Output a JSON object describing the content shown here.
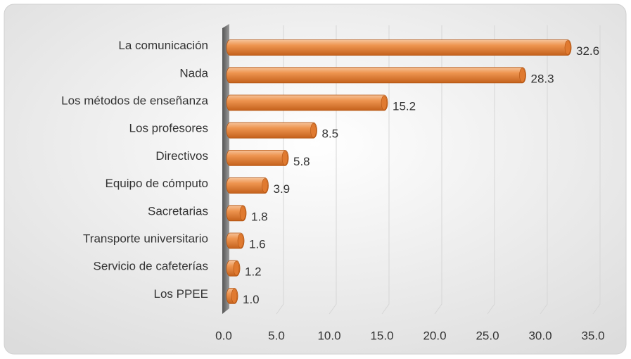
{
  "chart_data": {
    "type": "bar",
    "orientation": "horizontal",
    "categories": [
      "La comunicación",
      "Nada",
      "Los métodos de enseñanza",
      "Los profesores",
      "Directivos",
      "Equipo de cómputo",
      "Sacretarias",
      "Transporte universitario",
      "Servicio de cafeterías",
      "Los PPEE"
    ],
    "values": [
      32.6,
      28.3,
      15.2,
      8.5,
      5.8,
      3.9,
      1.8,
      1.6,
      1.2,
      1.0
    ],
    "value_labels": [
      "32.6",
      "28.3",
      "15.2",
      "8.5",
      "5.8",
      "3.9",
      "1.8",
      "1.6",
      "1.2",
      "1.0"
    ],
    "color": "#e8843c",
    "xlim": [
      0,
      35
    ],
    "xticks": [
      {
        "value": 0,
        "label": "0.0"
      },
      {
        "value": 5,
        "label": "5.0"
      },
      {
        "value": 10,
        "label": "10.0"
      },
      {
        "value": 15,
        "label": "15.0"
      },
      {
        "value": 20,
        "label": "20.0"
      },
      {
        "value": 25,
        "label": "25.0"
      },
      {
        "value": 30,
        "label": "30.0"
      },
      {
        "value": 35,
        "label": "35.0"
      }
    ],
    "grid": true
  }
}
